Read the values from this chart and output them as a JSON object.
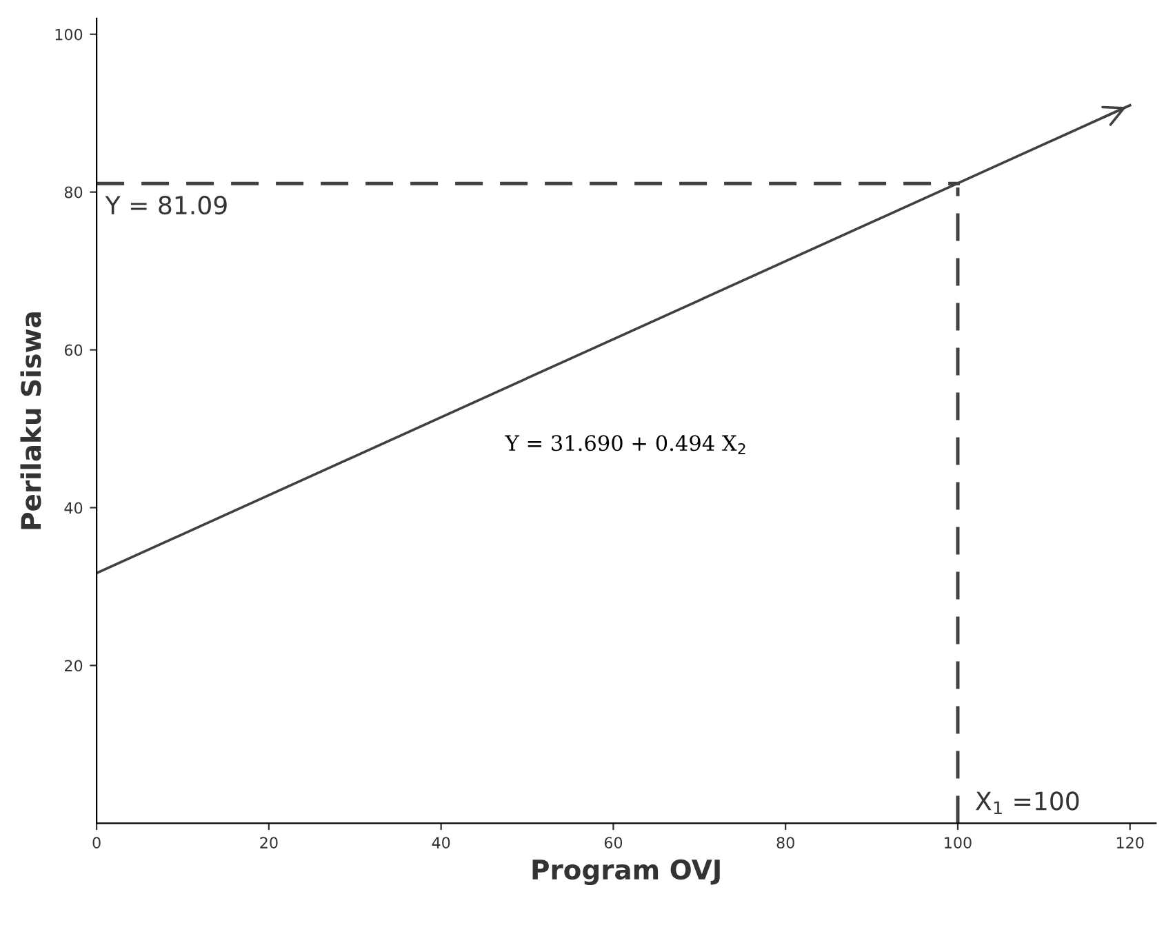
{
  "chart_data": {
    "type": "line",
    "xlabel": "Program OVJ",
    "ylabel": "Perilaku Siswa",
    "x": [
      0,
      120
    ],
    "series": [
      {
        "color": "#404040",
        "values": [
          31.7,
          91.0
        ]
      }
    ],
    "xlim": [
      0,
      123
    ],
    "ylim": [
      0,
      102
    ],
    "xticks": [
      0,
      20,
      40,
      60,
      80,
      100,
      120
    ],
    "yticks": [
      20,
      40,
      60,
      80,
      100
    ],
    "ref_lines": [
      {
        "axis": "y",
        "value": 81.09,
        "label": "Y = 81.09",
        "color": "#404040",
        "line_style": "dashed"
      },
      {
        "axis": "x",
        "value": 100,
        "label": "X$_{1}$ =100",
        "color": "#404040",
        "line_style": "dashed"
      }
    ],
    "annotations": [
      "Y = 31.690 + 0.494 X$_{2}$"
    ],
    "grid": false,
    "marker": "none",
    "line_style": "solid"
  }
}
